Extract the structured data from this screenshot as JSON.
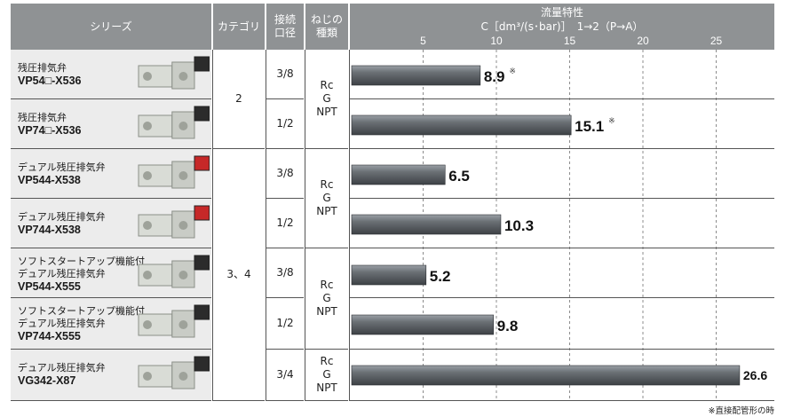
{
  "header": {
    "series": "シリーズ",
    "category": "カテゴリ",
    "port_line1": "接続",
    "port_line2": "口径",
    "thread_line1": "ねじの",
    "thread_line2": "種類",
    "flow_title": "流量特性",
    "flow_unit": "C［dm³/(s･bar)］　1→2（P→A）"
  },
  "rows": [
    {
      "name": "残圧排気弁",
      "model": "VP54□-X536",
      "size": "3/8"
    },
    {
      "name": "残圧排気弁",
      "model": "VP74□-X536",
      "size": "1/2"
    },
    {
      "name": "デュアル残圧排気弁",
      "model": "VP544-X538",
      "size": "3/8"
    },
    {
      "name": "デュアル残圧排気弁",
      "model": "VP744-X538",
      "size": "1/2"
    },
    {
      "name_line1": "ソフトスタートアップ機能付",
      "name": "デュアル残圧排気弁",
      "model": "VP544-X555",
      "size": "3/8"
    },
    {
      "name_line1": "ソフトスタートアップ機能付",
      "name": "デュアル残圧排気弁",
      "model": "VP744-X555",
      "size": "1/2"
    },
    {
      "name": "デュアル残圧排気弁",
      "model": "VG342-X87",
      "size": "3/4"
    }
  ],
  "groups": {
    "category_a": "2",
    "category_b": "3、4",
    "thread_a": [
      "Rc",
      "G",
      "NPT"
    ],
    "thread_b": [
      "Rc",
      "G",
      "NPT"
    ],
    "thread_c": [
      "Rc",
      "G",
      "NPT"
    ]
  },
  "chart_data": {
    "type": "bar",
    "orientation": "horizontal",
    "title": "流量特性",
    "xlabel": "C［dm³/(s･bar)］　1→2（P→A）",
    "xlim": [
      0,
      28
    ],
    "xticks": [
      5,
      10,
      15,
      20,
      25
    ],
    "grid": "dashed vertical",
    "bar_color": "#5a5e63",
    "categories": [
      "VP54□-X536",
      "VP74□-X536",
      "VP544-X538",
      "VP744-X538",
      "VP544-X555",
      "VP744-X555",
      "VG342-X87"
    ],
    "values": [
      8.9,
      15.1,
      6.5,
      10.3,
      5.2,
      9.8,
      26.6
    ],
    "labels": [
      "8.9",
      "15.1",
      "6.5",
      "10.3",
      "5.2",
      "9.8",
      "26.6"
    ],
    "marks": [
      "※",
      "※",
      "",
      "",
      "",
      "",
      ""
    ]
  },
  "footnote": "※直接配管形の時"
}
